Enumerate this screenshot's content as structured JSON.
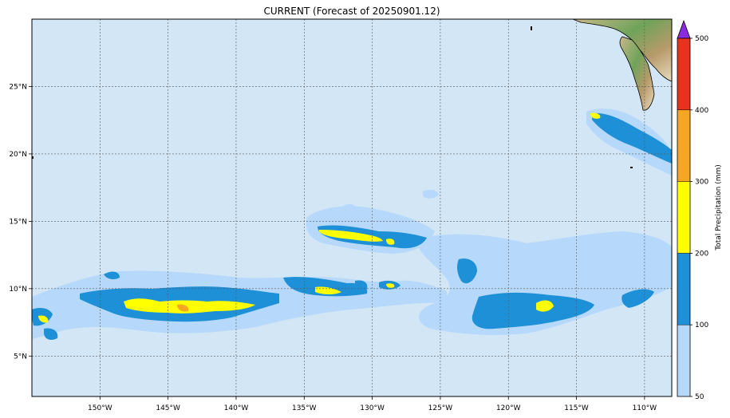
{
  "title": "CURRENT (Forecast of 20250901.12)",
  "map": {
    "lon_range": [
      -155,
      -108
    ],
    "lat_range": [
      2,
      30
    ],
    "lon_ticks": [
      "150°W",
      "145°W",
      "140°W",
      "135°W",
      "130°W",
      "125°W",
      "120°W",
      "115°W",
      "110°W"
    ],
    "lat_ticks": [
      "25°N",
      "20°N",
      "15°N",
      "10°N",
      "5°N"
    ],
    "ocean_color": "#d3e6f5"
  },
  "colorbar": {
    "label": "Total Precipitation (mm)",
    "ticks": [
      "500",
      "400",
      "300",
      "200",
      "100",
      "50"
    ],
    "levels": [
      {
        "range": "50-100",
        "color": "#b6d9fb"
      },
      {
        "range": "100-200",
        "color": "#1e90d7"
      },
      {
        "range": "200-300",
        "color": "#ffff00"
      },
      {
        "range": "300-400",
        "color": "#f5a623"
      },
      {
        "range": "400-500",
        "color": "#e8321e"
      },
      {
        "range": ">500",
        "color": "#8a2be2"
      }
    ]
  }
}
